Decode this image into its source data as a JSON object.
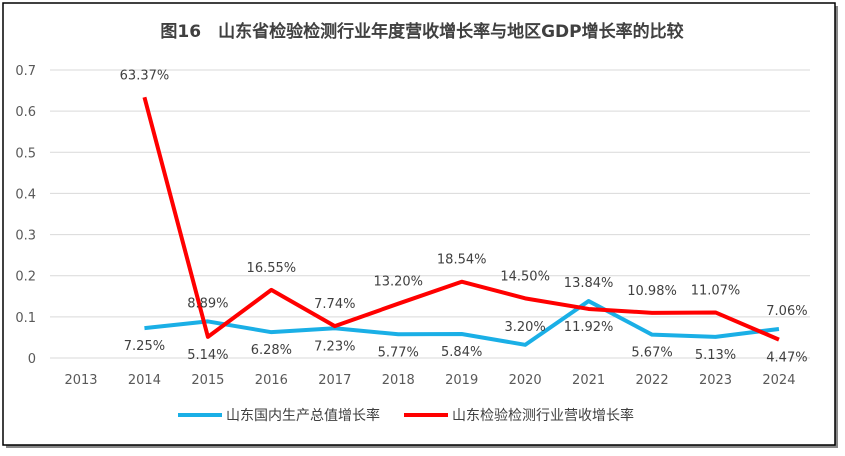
{
  "chart_data": {
    "type": "line",
    "title": "图16　山东省检验检测行业年度营收增长率与地区GDP增长率的比较",
    "categories": [
      "2013",
      "2014",
      "2015",
      "2016",
      "2017",
      "2018",
      "2019",
      "2020",
      "2021",
      "2022",
      "2023",
      "2024"
    ],
    "ylim": [
      0,
      0.7
    ],
    "yticks": [
      "0",
      "0.1",
      "0.2",
      "0.3",
      "0.4",
      "0.5",
      "0.6",
      "0.7"
    ],
    "grid": true,
    "legend_position": "bottom",
    "series": [
      {
        "name": "山东国内生产总值增长率",
        "color": "#1AAFE6",
        "values": [
          null,
          0.0725,
          0.0889,
          0.0628,
          0.0723,
          0.0577,
          0.0584,
          0.032,
          0.1384,
          0.0567,
          0.0513,
          0.0706
        ],
        "labels": [
          "",
          "7.25%",
          "8.89%",
          "6.28%",
          "7.23%",
          "5.77%",
          "5.84%",
          "3.20%",
          "13.84%",
          "5.67%",
          "5.13%",
          "7.06%"
        ]
      },
      {
        "name": "山东检验检测行业营收增长率",
        "color": "#FF0000",
        "values": [
          null,
          0.6337,
          0.0514,
          0.1655,
          0.0774,
          0.132,
          0.1854,
          0.145,
          0.1192,
          0.1098,
          0.1107,
          0.0447
        ],
        "labels": [
          "",
          "63.37%",
          "5.14%",
          "16.55%",
          "7.74%",
          "13.20%",
          "18.54%",
          "14.50%",
          "11.92%",
          "10.98%",
          "11.07%",
          "4.47%"
        ]
      }
    ]
  }
}
